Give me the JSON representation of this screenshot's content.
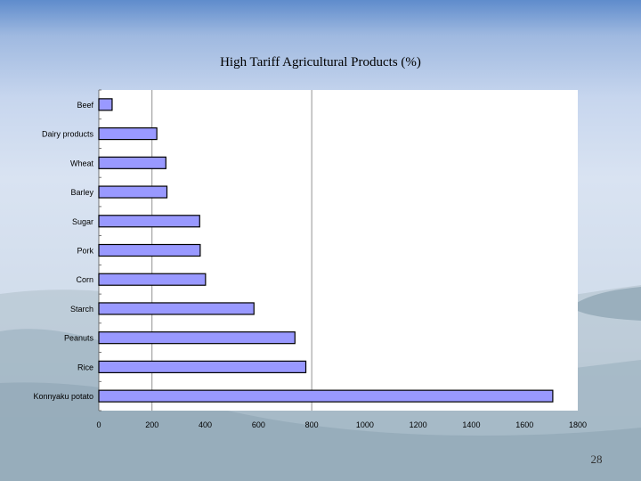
{
  "slide": {
    "number": "28"
  },
  "chart_data": {
    "type": "bar",
    "orientation": "horizontal",
    "title": "High Tariff Agricultural Products (%)",
    "xlabel": "",
    "ylabel": "",
    "categories": [
      "Beef",
      "Dairy products",
      "Wheat",
      "Barley",
      "Sugar",
      "Pork",
      "Corn",
      "Starch",
      "Peanuts",
      "Rice",
      "Konnyaku potato"
    ],
    "values": [
      50,
      218,
      252,
      256,
      379,
      381,
      401,
      583,
      737,
      778,
      1706
    ],
    "xlim": [
      0,
      1800
    ],
    "xticks": [
      "0",
      "200",
      "400",
      "600",
      "800",
      "1000",
      "1200",
      "1400",
      "1600",
      "1800"
    ],
    "gridlines_at": [
      200,
      800
    ],
    "legend": "none",
    "colors": {
      "bar_fill": "#9999ff",
      "bar_stroke": "#000000",
      "plot_bg": "#ffffff"
    }
  }
}
